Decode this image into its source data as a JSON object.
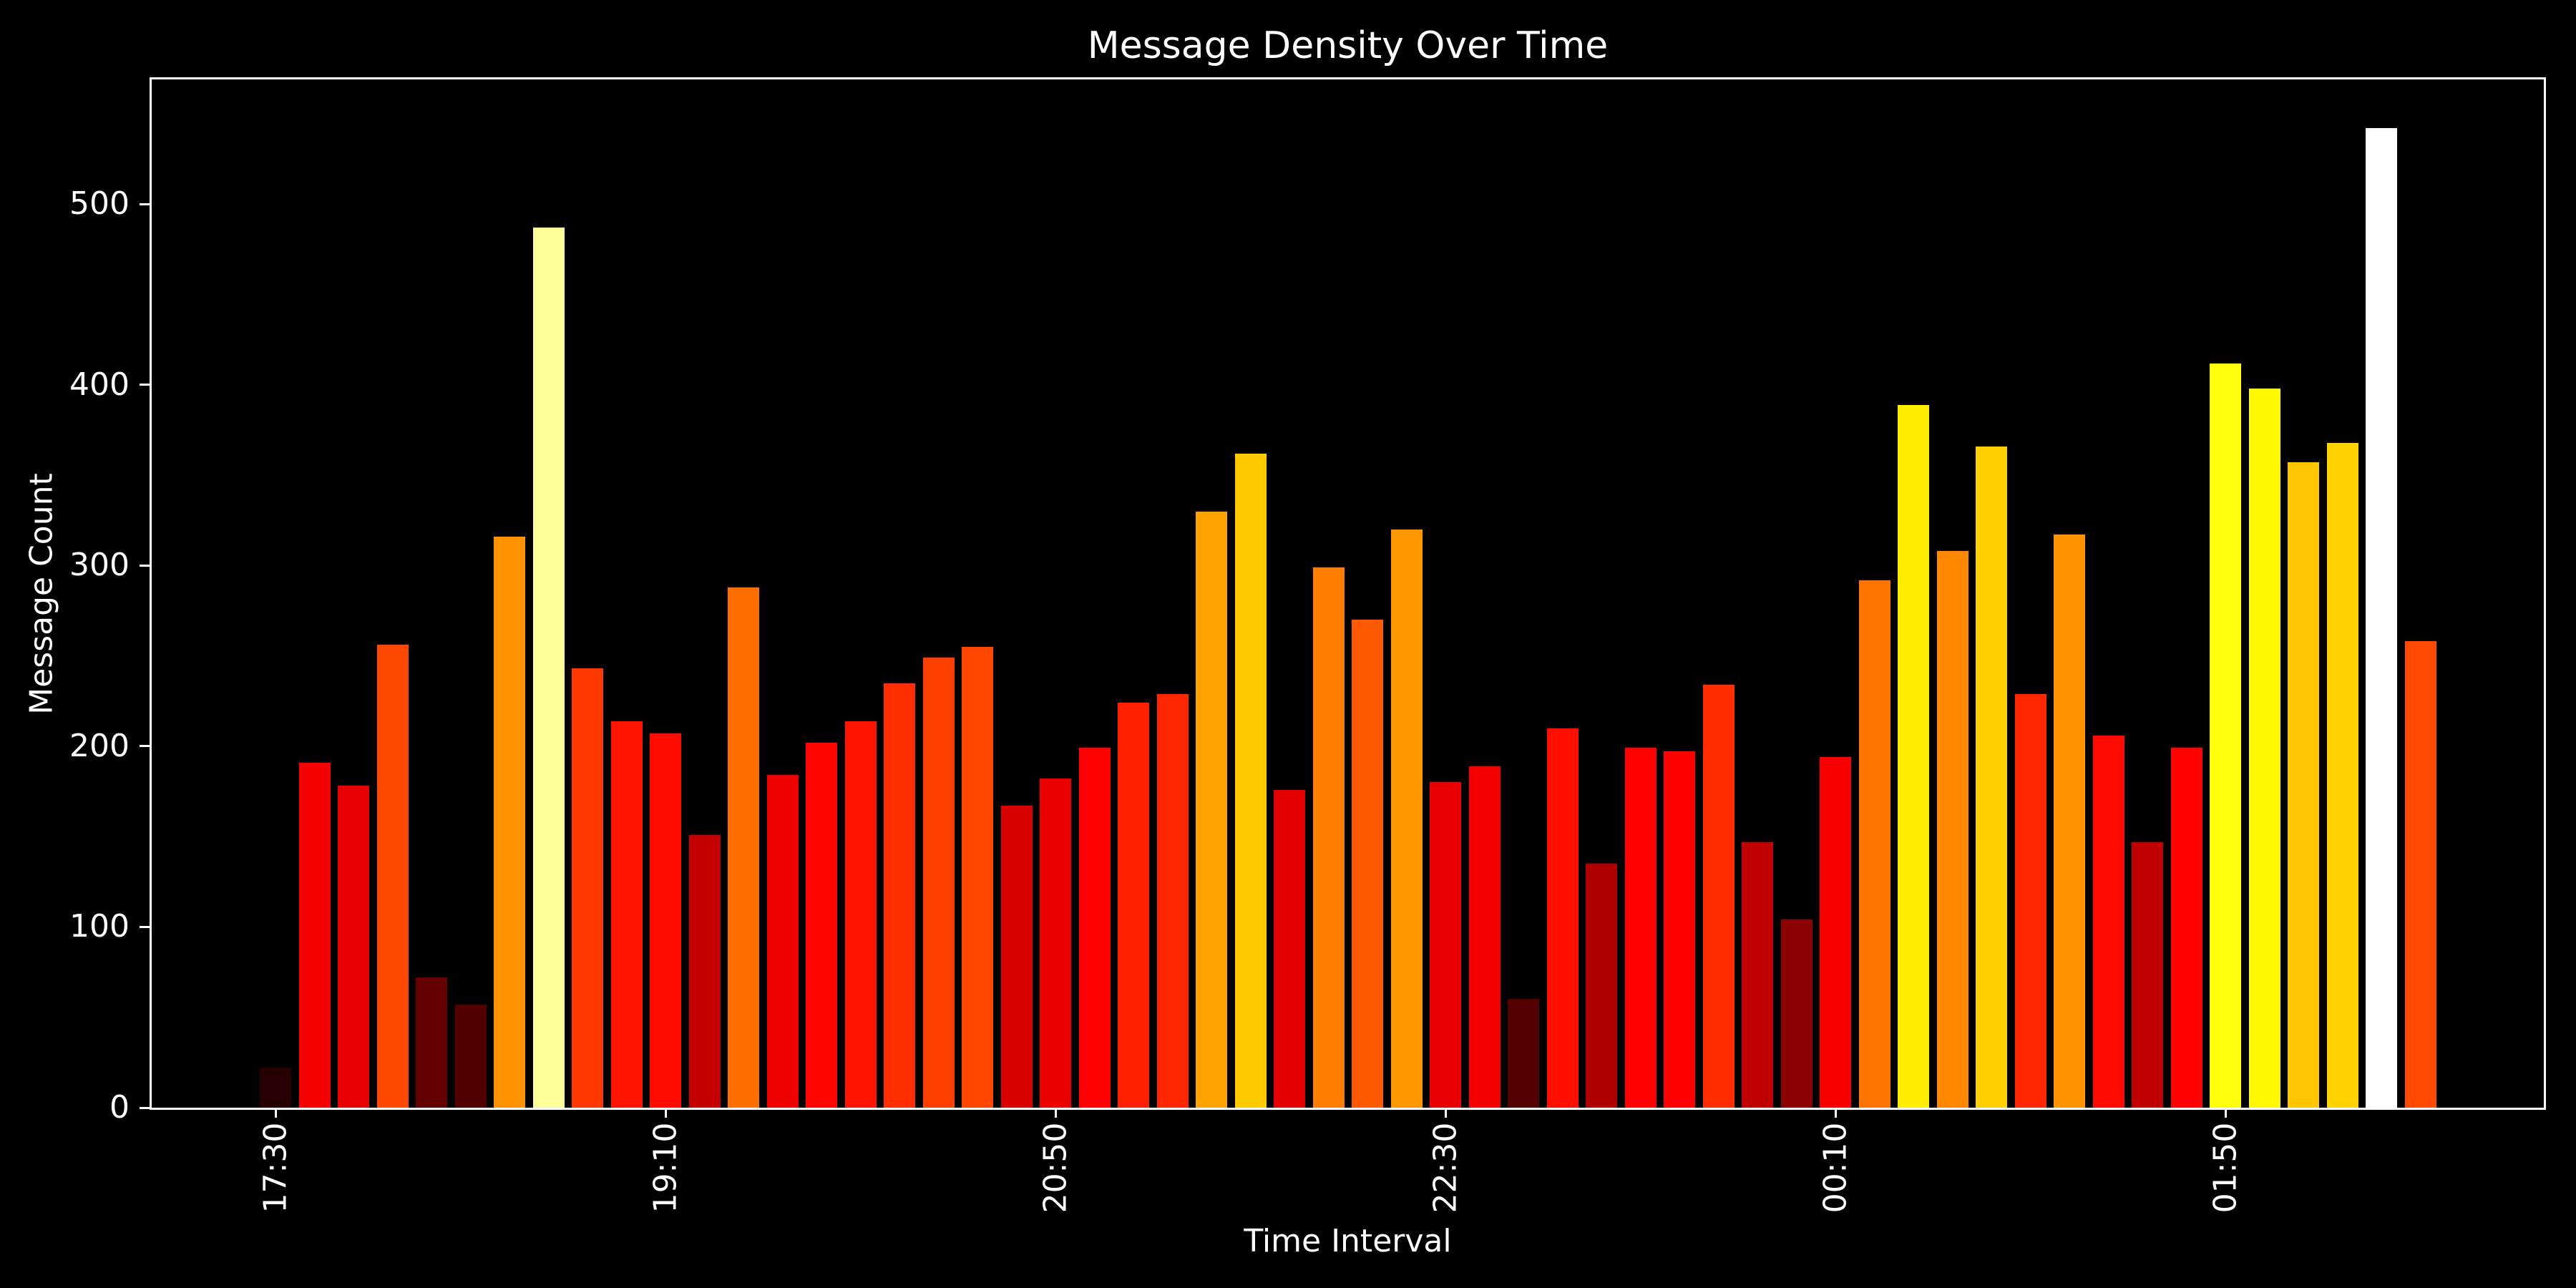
{
  "title": "Message Density Over Time",
  "axes": {
    "xlabel": "Time Interval",
    "ylabel": "Message Count"
  },
  "colors": {
    "background": "#000000",
    "text": "#ffffff",
    "spine": "#ffffff",
    "bar_colormap": "hot"
  },
  "chart_data": {
    "type": "bar",
    "title": "Message Density Over Time",
    "xlabel": "Time Interval",
    "ylabel": "Message Count",
    "categories": [
      "17:30",
      "17:40",
      "17:50",
      "18:00",
      "18:10",
      "18:20",
      "18:30",
      "18:40",
      "18:50",
      "19:00",
      "19:10",
      "19:20",
      "19:30",
      "19:40",
      "19:50",
      "20:00",
      "20:10",
      "20:20",
      "20:30",
      "20:40",
      "20:50",
      "21:00",
      "21:10",
      "21:20",
      "21:30",
      "21:40",
      "21:50",
      "22:00",
      "22:10",
      "22:20",
      "22:30",
      "22:40",
      "22:50",
      "23:00",
      "23:10",
      "23:20",
      "23:30",
      "23:40",
      "23:50",
      "00:00",
      "00:10",
      "00:20",
      "00:30",
      "00:40",
      "00:50",
      "01:00",
      "01:10",
      "01:20",
      "01:30",
      "01:40",
      "01:50",
      "02:00",
      "02:10",
      "02:20",
      "02:30",
      "02:40"
    ],
    "values": [
      22,
      191,
      178,
      256,
      72,
      57,
      316,
      487,
      243,
      214,
      207,
      151,
      288,
      184,
      202,
      214,
      235,
      249,
      255,
      167,
      182,
      199,
      224,
      229,
      330,
      362,
      176,
      299,
      270,
      320,
      180,
      189,
      60,
      210,
      135,
      199,
      197,
      234,
      147,
      104,
      194,
      292,
      389,
      308,
      366,
      229,
      317,
      206,
      147,
      199,
      412,
      398,
      357,
      368,
      542,
      258
    ],
    "ylim": [
      0,
      569
    ],
    "y_ticks": [
      0,
      100,
      200,
      300,
      400,
      500
    ],
    "x_tick_indices": [
      0,
      10,
      20,
      30,
      40,
      50
    ],
    "x_tick_labels": [
      "17:30",
      "19:10",
      "20:50",
      "22:30",
      "00:10",
      "01:50"
    ],
    "x_tick_rotation": 90,
    "grid": false,
    "legend": false,
    "colormap": "hot",
    "colormap_max": 542
  }
}
